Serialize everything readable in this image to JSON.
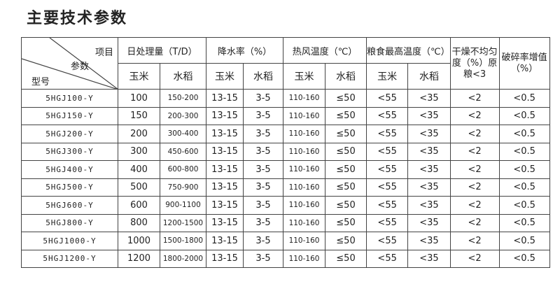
{
  "title": "主要技术参数",
  "header": {
    "item": "项目",
    "param": "参数",
    "model": "型号",
    "capacity": "日处理量（T/D）",
    "moisture": "降水率（%）",
    "hot_air": "热风温度（℃）",
    "grain_max": "粮食最高温度（℃）",
    "uneven": "干燥不均匀度（%）原粮<3",
    "broken": "破碎率增值（%）",
    "corn": "玉米",
    "rice": "水稻"
  },
  "rows": [
    [
      "5HGJ100-Y",
      "100",
      "150-200",
      "13-15",
      "3-5",
      "110-160",
      "≤50",
      "<55",
      "<35",
      "<2",
      "<0.5"
    ],
    [
      "5HGJ150-Y",
      "150",
      "200-300",
      "13-15",
      "3-5",
      "110-160",
      "≤50",
      "<55",
      "<35",
      "<2",
      "<0.5"
    ],
    [
      "5HGJ200-Y",
      "200",
      "300-400",
      "13-15",
      "3-5",
      "110-160",
      "≤50",
      "<55",
      "<35",
      "<2",
      "<0.5"
    ],
    [
      "5HGJ300-Y",
      "300",
      "450-600",
      "13-15",
      "3-5",
      "110-160",
      "≤50",
      "<55",
      "<35",
      "<2",
      "<0.5"
    ],
    [
      "5HGJ400-Y",
      "400",
      "600-800",
      "13-15",
      "3-5",
      "110-160",
      "≤50",
      "<55",
      "<35",
      "<2",
      "<0.5"
    ],
    [
      "5HGJ500-Y",
      "500",
      "750-900",
      "13-15",
      "3-5",
      "110-160",
      "≤50",
      "<55",
      "<35",
      "<2",
      "<0.5"
    ],
    [
      "5HGJ600-Y",
      "600",
      "900-1100",
      "13-15",
      "3-5",
      "110-160",
      "≤50",
      "<55",
      "<35",
      "<2",
      "<0.5"
    ],
    [
      "5HGJ800-Y",
      "800",
      "1200-1500",
      "13-15",
      "3-5",
      "110-160",
      "≤50",
      "<55",
      "<35",
      "<2",
      "<0.5"
    ],
    [
      "5HGJ1000-Y",
      "1000",
      "1500-1800",
      "13-15",
      "3-5",
      "110-160",
      "≤50",
      "<55",
      "<35",
      "<2",
      "<0.5"
    ],
    [
      "5HGJ1200-Y",
      "1200",
      "1800-2000",
      "13-15",
      "3-5",
      "110-160",
      "≤50",
      "<55",
      "<35",
      "<2",
      "<0.5"
    ]
  ]
}
